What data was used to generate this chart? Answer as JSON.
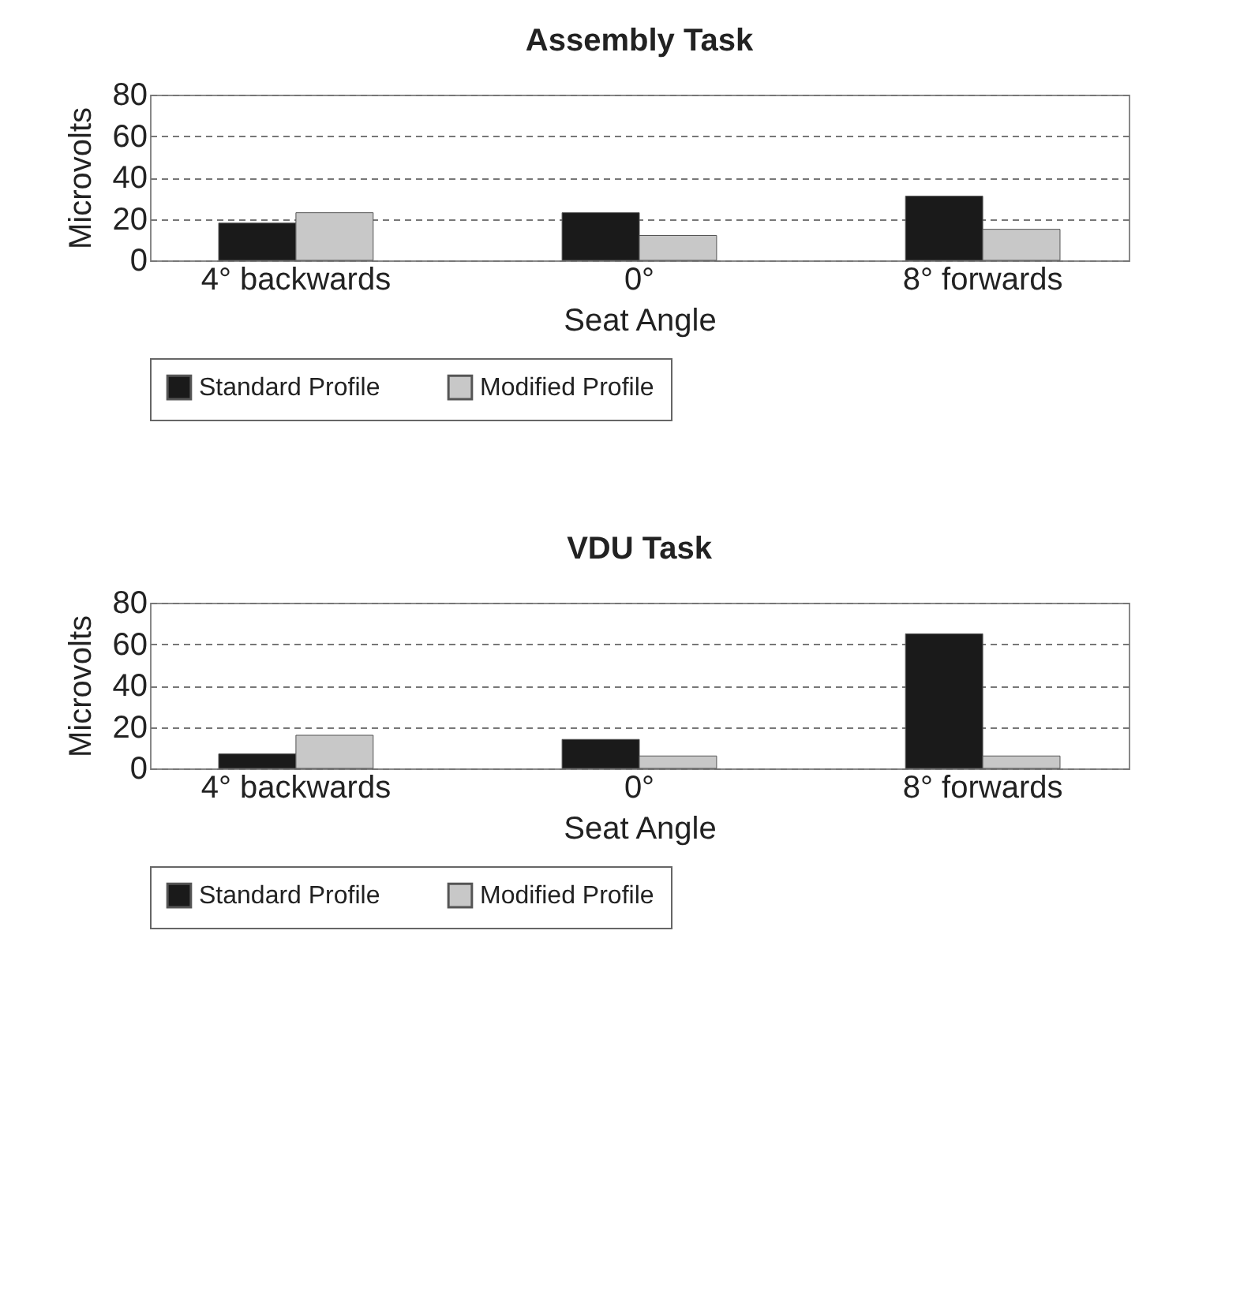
{
  "chart_data": [
    {
      "type": "bar",
      "title": "Assembly Task",
      "xlabel": "Seat Angle",
      "ylabel": "Microvolts",
      "categories": [
        "4° backwards",
        "0°",
        "8° forwards"
      ],
      "series": [
        {
          "name": "Standard Profile",
          "color": "#1a1a1a",
          "values": [
            18,
            23,
            31
          ]
        },
        {
          "name": "Modified Profile",
          "color": "#c8c8c8",
          "values": [
            23,
            12,
            15
          ]
        }
      ],
      "ylim": [
        0,
        80
      ],
      "yticks": [
        0,
        20,
        40,
        60,
        80
      ],
      "grid": "y",
      "legend": "bottom"
    },
    {
      "type": "bar",
      "title": "VDU Task",
      "xlabel": "Seat Angle",
      "ylabel": "Microvolts",
      "categories": [
        "4° backwards",
        "0°",
        "8° forwards"
      ],
      "series": [
        {
          "name": "Standard Profile",
          "color": "#1a1a1a",
          "values": [
            7,
            14,
            65
          ]
        },
        {
          "name": "Modified Profile",
          "color": "#c8c8c8",
          "values": [
            16,
            6,
            6
          ]
        }
      ],
      "ylim": [
        0,
        80
      ],
      "yticks": [
        0,
        20,
        40,
        60,
        80
      ],
      "grid": "y",
      "legend": "bottom"
    }
  ]
}
